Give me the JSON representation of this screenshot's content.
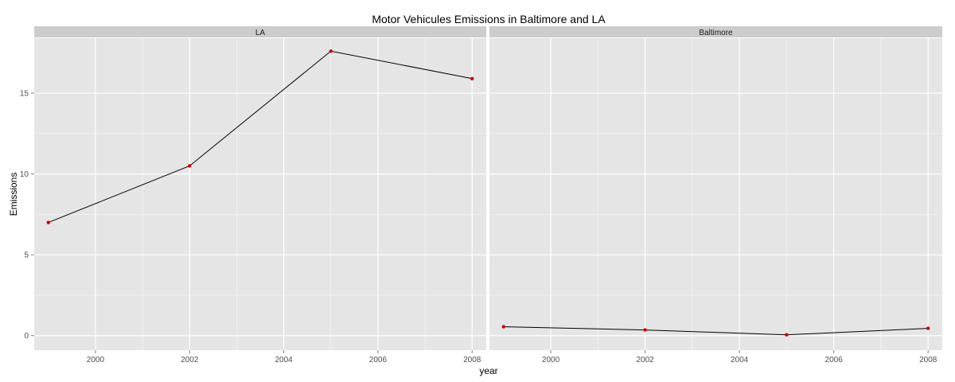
{
  "chart_data": {
    "type": "line",
    "title": "Motor Vehicules Emissions in Baltimore and LA",
    "xlabel": "year",
    "ylabel": "Emissions",
    "xlim": [
      1998.7,
      2008.3
    ],
    "ylim": [
      -0.9,
      18.4
    ],
    "x_ticks": [
      2000,
      2002,
      2004,
      2006,
      2008
    ],
    "x_tick_labels": [
      "2000",
      "2002",
      "2004",
      "2006",
      "2008"
    ],
    "y_ticks": [
      0,
      5,
      10,
      15
    ],
    "y_tick_labels": [
      "0",
      "5",
      "10",
      "15"
    ],
    "grid": true,
    "line_color": "#000000",
    "point_color": "#cc0000",
    "panel_background": "#e5e5e5",
    "strip_background": "#cccccc",
    "grid_color": "#ffffff",
    "facets": [
      {
        "label": "LA",
        "x": [
          1999,
          2002,
          2005,
          2008
        ],
        "values": [
          7.0,
          10.5,
          17.6,
          15.9
        ]
      },
      {
        "label": "Baltimore",
        "x": [
          1999,
          2002,
          2005,
          2008
        ],
        "values": [
          0.55,
          0.35,
          0.05,
          0.45
        ]
      }
    ]
  }
}
